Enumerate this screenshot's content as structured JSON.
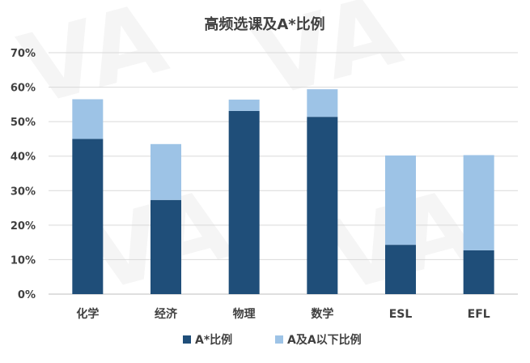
{
  "chart_data": {
    "type": "bar",
    "stacked": true,
    "title": "高频选课及A*比例",
    "categories": [
      "化学",
      "经济",
      "物理",
      "数学",
      "ESL",
      "EFL"
    ],
    "series": [
      {
        "name": "A*比例",
        "values": [
          45,
          27.3,
          53.1,
          51.4,
          14.3,
          12.7
        ],
        "color": "#1f4e79"
      },
      {
        "name": "A及A以下比例",
        "values": [
          11.5,
          16.2,
          3.3,
          8.0,
          25.9,
          27.6
        ],
        "color": "#9dc3e6"
      }
    ],
    "ylim": [
      0,
      70
    ],
    "yticks": [
      0,
      10,
      20,
      30,
      40,
      50,
      60,
      70
    ],
    "ytick_format": "percent",
    "grid": true,
    "legend_position": "bottom"
  }
}
